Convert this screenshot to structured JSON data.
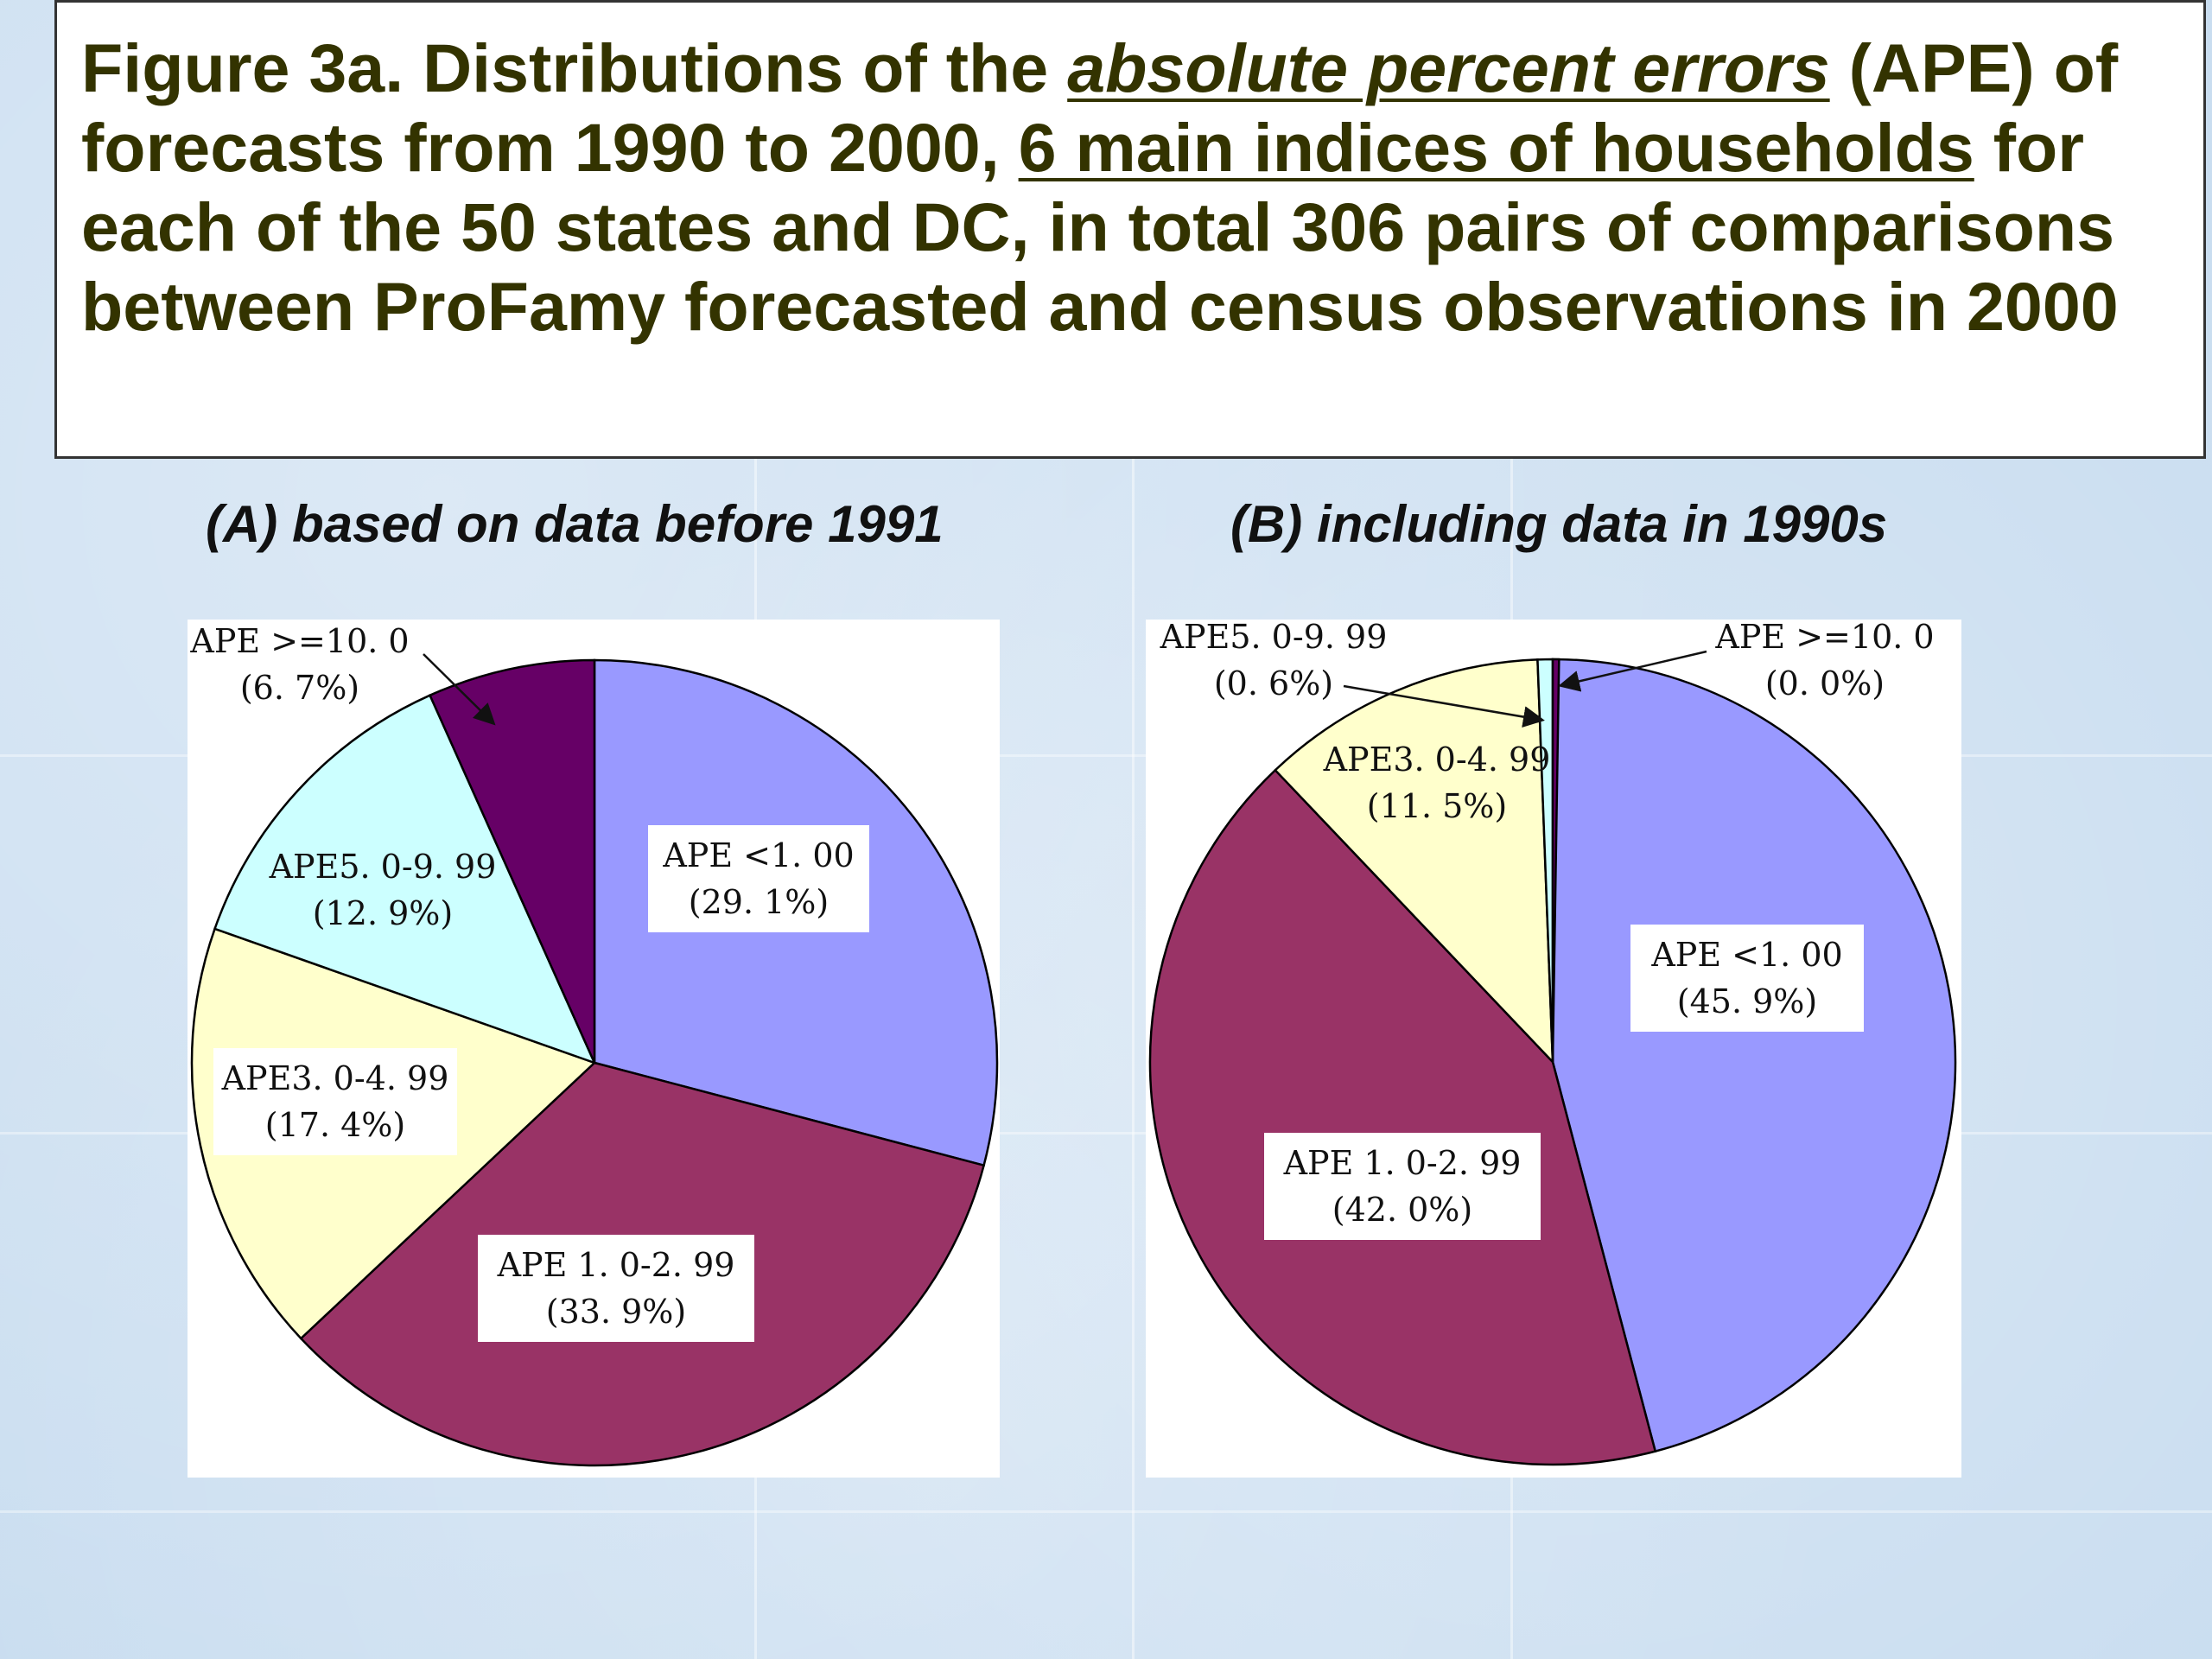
{
  "title": {
    "part1": "Figure 3a. Distributions of the ",
    "part2": "absolute percent errors",
    "part3": " (APE) of forecasts from 1990 to 2000, ",
    "part4": "6 main indices of households",
    "part5": " for each of the 50 states and DC, in total 306 pairs of comparisons between ProFamy forecasted and census observations in 2000"
  },
  "colors": {
    "APE <1.00": "#9999ff",
    "APE 1.0-2.99": "#993366",
    "APE3.0-4.99": "#ffffcc",
    "APE5.0-9.99": "#ccffff",
    "APE >=10.0": "#660066"
  },
  "chart_data": [
    {
      "type": "pie",
      "title": "(A) based on data before 1991",
      "slices": [
        {
          "name": "APE <1.00",
          "value": 29.1,
          "label_pct": "(29. 1%)",
          "label_name": "APE <1. 00"
        },
        {
          "name": "APE 1.0-2.99",
          "value": 33.9,
          "label_pct": "(33. 9%)",
          "label_name": "APE 1. 0-2. 99"
        },
        {
          "name": "APE3.0-4.99",
          "value": 17.4,
          "label_pct": "(17. 4%)",
          "label_name": "APE3. 0-4. 99"
        },
        {
          "name": "APE5.0-9.99",
          "value": 12.9,
          "label_pct": "(12. 9%)",
          "label_name": "APE5. 0-9. 99"
        },
        {
          "name": "APE >=10.0",
          "value": 6.7,
          "label_pct": "(6. 7%)",
          "label_name": "APE >=10. 0"
        }
      ]
    },
    {
      "type": "pie",
      "title": "(B) including data in 1990s",
      "slices": [
        {
          "name": "APE <1.00",
          "value": 45.9,
          "label_pct": "(45. 9%)",
          "label_name": "APE <1. 00"
        },
        {
          "name": "APE 1.0-2.99",
          "value": 42.0,
          "label_pct": "(42. 0%)",
          "label_name": "APE 1. 0-2. 99"
        },
        {
          "name": "APE3.0-4.99",
          "value": 11.5,
          "label_pct": "(11. 5%)",
          "label_name": "APE3. 0-4. 99"
        },
        {
          "name": "APE5.0-9.99",
          "value": 0.6,
          "label_pct": "(0. 6%)",
          "label_name": "APE5. 0-9. 99"
        },
        {
          "name": "APE >=10.0",
          "value": 0.0,
          "label_pct": "(0. 0%)",
          "label_name": "APE >=10. 0"
        }
      ]
    }
  ]
}
